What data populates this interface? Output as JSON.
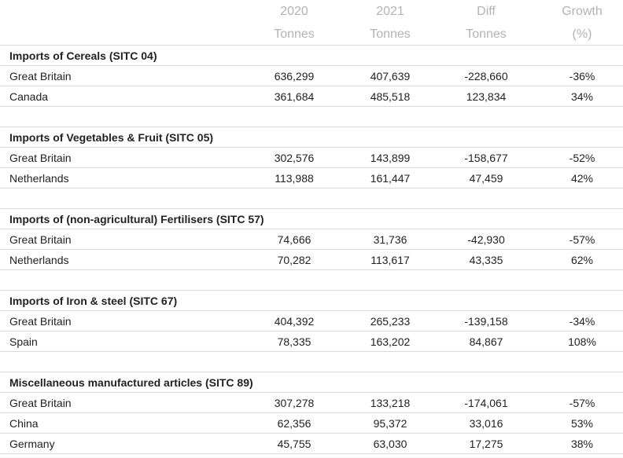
{
  "header": {
    "years": [
      "2020",
      "2021",
      "Diff",
      "Growth"
    ],
    "units": [
      "Tonnes",
      "Tonnes",
      "Tonnes",
      "(%)"
    ]
  },
  "sections": [
    {
      "title": "Imports of Cereals (SITC 04)",
      "rows": [
        [
          "Great Britain",
          "636,299",
          "407,639",
          "-228,660",
          "-36%"
        ],
        [
          "Canada",
          "361,684",
          "485,518",
          "123,834",
          "34%"
        ]
      ]
    },
    {
      "title": "Imports of Vegetables & Fruit (SITC 05)",
      "rows": [
        [
          "Great Britain",
          "302,576",
          "143,899",
          "-158,677",
          "-52%"
        ],
        [
          "Netherlands",
          "113,988",
          "161,447",
          "47,459",
          "42%"
        ]
      ]
    },
    {
      "title": "Imports of (non-agricultural) Fertilisers (SITC 57)",
      "rows": [
        [
          "Great Britain",
          "74,666",
          "31,736",
          "-42,930",
          "-57%"
        ],
        [
          "Netherlands",
          "70,282",
          "113,617",
          "43,335",
          "62%"
        ]
      ]
    },
    {
      "title": "Imports of Iron & steel (SITC 67)",
      "rows": [
        [
          "Great Britain",
          "404,392",
          "265,233",
          "-139,158",
          "-34%"
        ],
        [
          "Spain",
          "78,335",
          "163,202",
          "84,867",
          "108%"
        ]
      ]
    },
    {
      "title": "Miscellaneous manufactured articles (SITC 89)",
      "rows": [
        [
          "Great Britain",
          "307,278",
          "133,218",
          "-174,061",
          "-57%"
        ],
        [
          "China",
          "62,356",
          "95,372",
          "33,016",
          "53%"
        ],
        [
          "Germany",
          "45,755",
          "63,030",
          "17,275",
          "38%"
        ]
      ]
    }
  ]
}
